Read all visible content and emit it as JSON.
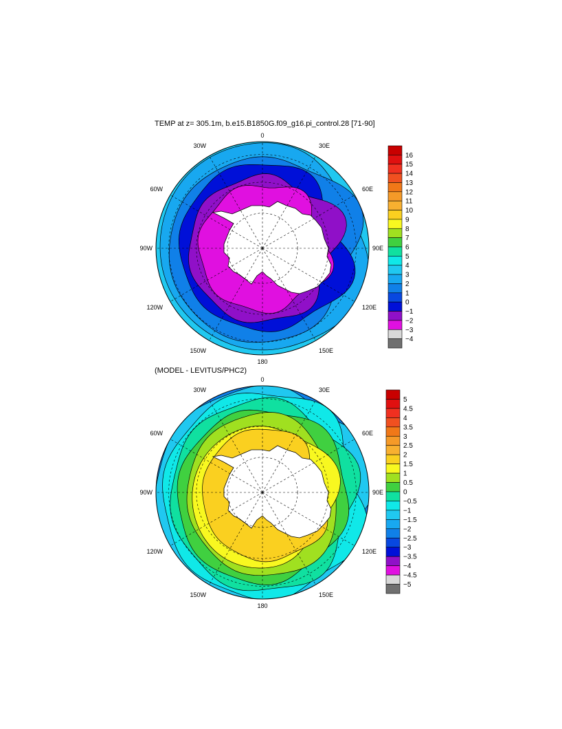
{
  "chart_data": [
    {
      "type": "heatmap",
      "projection": "south-polar-stereographic",
      "title": "TEMP at z= 305.1m, b.e15.B1850G.f09_g16.pi_control.28 [71-90]",
      "longitude_labels": [
        "0",
        "30E",
        "60E",
        "90E",
        "120E",
        "150E",
        "180",
        "150W",
        "120W",
        "90W",
        "60W",
        "30W"
      ],
      "colorbar": {
        "levels": [
          "16",
          "15",
          "14",
          "13",
          "12",
          "11",
          "10",
          "9",
          "8",
          "7",
          "6",
          "5",
          "4",
          "3",
          "2",
          "1",
          "0",
          "−1",
          "−2",
          "−3",
          "−4"
        ],
        "colors": [
          "#c80000",
          "#e01010",
          "#f03020",
          "#f05020",
          "#f07818",
          "#f59a28",
          "#f8b030",
          "#fad020",
          "#f8f820",
          "#a0e020",
          "#40d040",
          "#10e0a0",
          "#10e8e8",
          "#20c8f0",
          "#18a8f0",
          "#1080e8",
          "#0848e0",
          "#0010d8",
          "#9010c8",
          "#e010e0",
          "#d8d8d8",
          "#707070"
        ]
      },
      "ocean_bands": [
        {
          "value_range": [
            4,
            5
          ],
          "color": "#10e8e8"
        },
        {
          "value_range": [
            3,
            4
          ],
          "color": "#20c8f0"
        },
        {
          "value_range": [
            2,
            3
          ],
          "color": "#18a8f0"
        },
        {
          "value_range": [
            1,
            2
          ],
          "color": "#1080e8"
        },
        {
          "value_range": [
            0,
            1
          ],
          "color": "#0010d8"
        },
        {
          "value_range": [
            -1,
            0
          ],
          "color": "#9010c8"
        },
        {
          "value_range": [
            -2,
            -1
          ],
          "color": "#e010e0"
        }
      ]
    },
    {
      "type": "heatmap",
      "projection": "south-polar-stereographic",
      "title": "(MODEL - LEVITUS/PHC2)",
      "longitude_labels": [
        "0",
        "30E",
        "60E",
        "90E",
        "120E",
        "150E",
        "180",
        "150W",
        "120W",
        "90W",
        "60W",
        "30W"
      ],
      "colorbar": {
        "levels": [
          "5",
          "4.5",
          "4",
          "3.5",
          "3",
          "2.5",
          "2",
          "1.5",
          "1",
          "0.5",
          "0",
          "−0.5",
          "−1",
          "−1.5",
          "−2",
          "−2.5",
          "−3",
          "−3.5",
          "−4",
          "−4.5",
          "−5"
        ],
        "colors": [
          "#c80000",
          "#e01010",
          "#f03020",
          "#f05020",
          "#f07818",
          "#f59a28",
          "#f8b030",
          "#fad020",
          "#f8f820",
          "#a0e020",
          "#40d040",
          "#10e0a0",
          "#10e8e8",
          "#20c8f0",
          "#18a8f0",
          "#1080e8",
          "#0848e0",
          "#0010d8",
          "#9010c8",
          "#e010e0",
          "#d8d8d8",
          "#707070"
        ]
      },
      "ocean_bands": [
        {
          "value_range": [
            -2.5,
            -2
          ],
          "color": "#0848e0"
        },
        {
          "value_range": [
            -2,
            -1.5
          ],
          "color": "#1080e8"
        },
        {
          "value_range": [
            -1.5,
            -1
          ],
          "color": "#20c8f0"
        },
        {
          "value_range": [
            -1,
            -0.5
          ],
          "color": "#10e8e8"
        },
        {
          "value_range": [
            -0.5,
            0
          ],
          "color": "#10e0a0"
        },
        {
          "value_range": [
            0,
            0.5
          ],
          "color": "#40d040"
        },
        {
          "value_range": [
            0.5,
            1
          ],
          "color": "#a0e020"
        },
        {
          "value_range": [
            1,
            1.5
          ],
          "color": "#f8f820"
        },
        {
          "value_range": [
            1.5,
            2
          ],
          "color": "#fad020"
        }
      ]
    }
  ]
}
